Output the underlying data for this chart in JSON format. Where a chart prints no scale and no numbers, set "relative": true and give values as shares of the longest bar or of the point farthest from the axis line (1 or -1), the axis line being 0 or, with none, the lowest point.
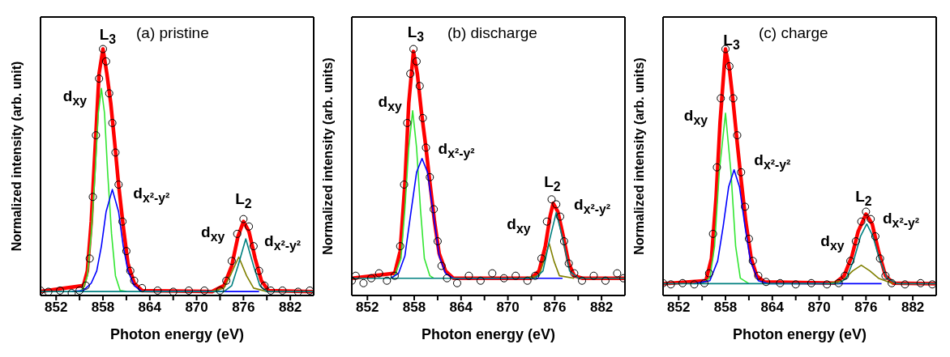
{
  "chart_data": [
    {
      "type": "line",
      "title": "(a) pristine",
      "xlabel": "Photon energy (eV)",
      "ylabel": "Normalized intensity (arb. unit)",
      "relative": true,
      "xlim": [
        850,
        885
      ],
      "xticks": [
        852,
        {
          "value": 855,
          "label": null
        },
        858,
        {
          "value": 861,
          "label": null
        },
        864,
        {
          "value": 867,
          "label": null
        },
        870,
        {
          "value": 873,
          "label": null
        },
        876,
        {
          "value": 879,
          "label": null
        },
        882
      ],
      "series": [
        {
          "type": "scatter",
          "marker": "circle",
          "color": "#000000",
          "x": [
            850,
            851,
            852.5,
            854,
            855,
            855.8,
            856.3,
            856.7,
            857.1,
            857.5,
            858,
            858.4,
            858.8,
            859.2,
            859.6,
            860,
            860.5,
            861,
            861.5,
            862,
            863,
            865,
            867,
            869,
            871,
            873,
            873.8,
            874.5,
            875.2,
            876,
            876.7,
            877.3,
            878,
            878.7,
            879.5,
            881,
            883,
            884.5
          ],
          "values": [
            0.02,
            0.015,
            0.02,
            0.01,
            0.02,
            0.04,
            0.15,
            0.4,
            0.65,
            0.88,
            1.0,
            0.95,
            0.82,
            0.7,
            0.58,
            0.45,
            0.3,
            0.18,
            0.1,
            0.06,
            0.03,
            0.02,
            0.015,
            0.02,
            0.02,
            0.02,
            0.06,
            0.14,
            0.25,
            0.31,
            0.28,
            0.2,
            0.1,
            0.04,
            0.02,
            0.02,
            0.015,
            0.02
          ]
        },
        {
          "color": "#ff0000",
          "x": [
            850,
            855.5,
            856,
            856.5,
            857,
            857.5,
            858,
            858.5,
            859,
            859.5,
            860,
            860.6,
            861.2,
            862,
            863,
            872,
            873.5,
            874.5,
            875.3,
            876,
            876.7,
            877.5,
            878.3,
            879.2,
            885
          ],
          "values": [
            0.016,
            0.04,
            0.1,
            0.3,
            0.6,
            0.9,
            1.0,
            0.9,
            0.78,
            0.62,
            0.45,
            0.28,
            0.13,
            0.05,
            0.02,
            0.016,
            0.04,
            0.12,
            0.24,
            0.3,
            0.26,
            0.15,
            0.06,
            0.02,
            0.016
          ]
        },
        {
          "color": "#33e633",
          "x": [
            855,
            855.5,
            856,
            856.5,
            857,
            857.4,
            857.8,
            858.2,
            858.6,
            859.1,
            859.6,
            860.2,
            861
          ],
          "values": [
            0.016,
            0.03,
            0.08,
            0.25,
            0.5,
            0.74,
            0.84,
            0.74,
            0.5,
            0.25,
            0.08,
            0.02,
            0.016
          ]
        },
        {
          "color": "#0000ff",
          "x": [
            854,
            855.5,
            856.5,
            857.2,
            857.8,
            858.4,
            859.2,
            860,
            860.6,
            861.2,
            862,
            863,
            878
          ],
          "values": [
            0.016,
            0.02,
            0.05,
            0.1,
            0.2,
            0.34,
            0.43,
            0.34,
            0.2,
            0.1,
            0.04,
            0.016,
            0.016
          ]
        },
        {
          "color": "#808000",
          "x": [
            872,
            873.5,
            874.3,
            875.4,
            876.4,
            877.3,
            879
          ],
          "values": [
            0.016,
            0.03,
            0.08,
            0.156,
            0.08,
            0.03,
            0.016
          ]
        },
        {
          "color": "#008080",
          "x": [
            850,
            873.5,
            874.5,
            875.3,
            876.3,
            877.3,
            878.1,
            879,
            885
          ],
          "values": [
            0.016,
            0.016,
            0.04,
            0.12,
            0.23,
            0.12,
            0.04,
            0.016,
            0.016
          ]
        }
      ],
      "annotations": [
        "L$_{3}$",
        "d$_{xy}$",
        "d$_{x²-y²}$",
        "L$_{2}$",
        "d$_{xy}$",
        "d$_{x²-y²}$"
      ]
    },
    {
      "type": "line",
      "title": "(b) discharge",
      "xlabel": "Photon energy (eV)",
      "ylabel": "Normalized intensity (arb. units)",
      "relative": true,
      "xlim": [
        850,
        885
      ],
      "xticks": [
        852,
        {
          "value": 855,
          "label": null
        },
        858,
        {
          "value": 861,
          "label": null
        },
        864,
        {
          "value": 867,
          "label": null
        },
        870,
        {
          "value": 873,
          "label": null
        },
        876,
        {
          "value": 879,
          "label": null
        },
        882
      ],
      "series": [
        {
          "type": "scatter",
          "marker": "circle",
          "color": "#000000",
          "x": [
            850,
            850.5,
            851.5,
            852.5,
            853.5,
            854.5,
            855.5,
            856.2,
            856.7,
            857.1,
            857.5,
            857.9,
            858.3,
            858.7,
            859.1,
            859.5,
            860,
            860.5,
            861,
            861.5,
            862.2,
            863.5,
            865,
            866.5,
            868,
            869.5,
            871,
            872.5,
            873.5,
            874.3,
            875,
            875.6,
            876.2,
            876.7,
            877.2,
            877.8,
            878.5,
            879.5,
            881,
            882.5,
            884,
            884.8
          ],
          "values": [
            0.06,
            0.08,
            0.05,
            0.07,
            0.09,
            0.06,
            0.08,
            0.2,
            0.45,
            0.7,
            0.9,
            1.0,
            0.95,
            0.85,
            0.72,
            0.6,
            0.48,
            0.35,
            0.22,
            0.12,
            0.07,
            0.05,
            0.08,
            0.06,
            0.09,
            0.07,
            0.08,
            0.06,
            0.08,
            0.15,
            0.3,
            0.39,
            0.37,
            0.32,
            0.22,
            0.13,
            0.09,
            0.06,
            0.08,
            0.06,
            0.09,
            0.07
          ]
        },
        {
          "color": "#ff0000",
          "x": [
            850,
            855.5,
            856.2,
            856.8,
            857.3,
            857.9,
            858.4,
            858.9,
            859.5,
            860,
            860.6,
            861.2,
            862,
            863,
            873,
            874,
            874.8,
            875.4,
            875.8,
            876.4,
            877.1,
            877.8,
            878.5,
            879.5,
            885
          ],
          "values": [
            0.07,
            0.09,
            0.18,
            0.45,
            0.78,
            0.99,
            0.9,
            0.75,
            0.6,
            0.46,
            0.3,
            0.17,
            0.1,
            0.07,
            0.07,
            0.1,
            0.2,
            0.32,
            0.374,
            0.34,
            0.24,
            0.13,
            0.08,
            0.07,
            0.07
          ]
        },
        {
          "color": "#33e633",
          "x": [
            855,
            855.5,
            856.3,
            856.8,
            857.3,
            857.8,
            858.3,
            858.8,
            859.3,
            860,
            860.5
          ],
          "values": [
            0.07,
            0.08,
            0.15,
            0.35,
            0.6,
            0.75,
            0.6,
            0.35,
            0.15,
            0.08,
            0.07
          ]
        },
        {
          "color": "#0000ff",
          "x": [
            855,
            856,
            856.8,
            857.5,
            858.3,
            859,
            859.7,
            860.5,
            861.2,
            862,
            863,
            877
          ],
          "values": [
            0.07,
            0.09,
            0.16,
            0.32,
            0.5,
            0.556,
            0.5,
            0.32,
            0.16,
            0.09,
            0.07,
            0.07
          ]
        },
        {
          "color": "#808000",
          "x": [
            872,
            874,
            874.6,
            875.3,
            875.9,
            876.6,
            878.5
          ],
          "values": [
            0.07,
            0.08,
            0.14,
            0.21,
            0.14,
            0.08,
            0.07
          ]
        },
        {
          "color": "#008080",
          "x": [
            850,
            873.5,
            874.5,
            875.3,
            876.2,
            877.1,
            877.9,
            879,
            885
          ],
          "values": [
            0.07,
            0.07,
            0.1,
            0.22,
            0.337,
            0.22,
            0.1,
            0.07,
            0.07
          ]
        }
      ],
      "annotations": [
        "L$_{3}$",
        "d$_{xy}$",
        "d$_{x²-y²}$",
        "L$_{2}$",
        "d$_{xy}$",
        "d$_{x²-y²}$"
      ]
    },
    {
      "type": "line",
      "title": "(c) charge",
      "xlabel": "Photon energy (eV)",
      "ylabel": "Normalized intensity (arb. units)",
      "relative": true,
      "xlim": [
        850,
        885
      ],
      "xticks": [
        852,
        {
          "value": 855,
          "label": null
        },
        858,
        {
          "value": 861,
          "label": null
        },
        864,
        {
          "value": 867,
          "label": null
        },
        870,
        {
          "value": 873,
          "label": null
        },
        876,
        {
          "value": 879,
          "label": null
        },
        882
      ],
      "series": [
        {
          "type": "scatter",
          "marker": "circle",
          "color": "#000000",
          "x": [
            850,
            851,
            852.5,
            854,
            855.3,
            855.9,
            856.4,
            856.9,
            857.4,
            858,
            858.5,
            859,
            859.5,
            860,
            860.5,
            861,
            861.5,
            862.2,
            863.2,
            865,
            867,
            869,
            871,
            872.5,
            873.3,
            874,
            874.7,
            875.4,
            876,
            876.6,
            877.2,
            877.8,
            878.5,
            879.3,
            881,
            883,
            884.5
          ],
          "values": [
            0.05,
            0.045,
            0.05,
            0.045,
            0.05,
            0.09,
            0.25,
            0.52,
            0.8,
            1.0,
            0.93,
            0.8,
            0.65,
            0.5,
            0.36,
            0.23,
            0.14,
            0.08,
            0.055,
            0.05,
            0.045,
            0.05,
            0.045,
            0.05,
            0.08,
            0.14,
            0.22,
            0.3,
            0.34,
            0.31,
            0.24,
            0.15,
            0.08,
            0.05,
            0.045,
            0.05,
            0.045
          ]
        },
        {
          "color": "#ff0000",
          "x": [
            850,
            855.5,
            856.2,
            856.8,
            857.3,
            858,
            858.5,
            859,
            859.5,
            860,
            860.6,
            861.3,
            862,
            863,
            872,
            873.2,
            874.2,
            875,
            876,
            876.8,
            877.6,
            878.5,
            879.5,
            885
          ],
          "values": [
            0.048,
            0.06,
            0.15,
            0.4,
            0.7,
            1.0,
            0.92,
            0.78,
            0.62,
            0.47,
            0.3,
            0.15,
            0.08,
            0.055,
            0.05,
            0.08,
            0.16,
            0.26,
            0.33,
            0.29,
            0.18,
            0.08,
            0.05,
            0.048
          ]
        },
        {
          "color": "#33e633",
          "x": [
            855,
            856,
            856.6,
            857.2,
            858,
            858.7,
            859.3,
            859.9,
            861
          ],
          "values": [
            0.048,
            0.07,
            0.2,
            0.5,
            0.74,
            0.5,
            0.2,
            0.07,
            0.048
          ]
        },
        {
          "color": "#0000ff",
          "x": [
            854,
            856,
            857,
            857.7,
            858.4,
            859.1,
            859.8,
            860.5,
            861.2,
            862.2,
            863.5,
            878
          ],
          "values": [
            0.048,
            0.06,
            0.14,
            0.28,
            0.44,
            0.51,
            0.44,
            0.28,
            0.14,
            0.06,
            0.048,
            0.048
          ]
        },
        {
          "color": "#808000",
          "x": [
            871,
            873,
            874.3,
            875.4,
            876.5,
            877.6,
            879.5
          ],
          "values": [
            0.048,
            0.06,
            0.1,
            0.123,
            0.1,
            0.07,
            0.048
          ]
        },
        {
          "color": "#008080",
          "x": [
            850,
            872.5,
            873.5,
            874.5,
            875.3,
            876.1,
            876.9,
            877.7,
            878.7,
            880,
            885
          ],
          "values": [
            0.048,
            0.048,
            0.07,
            0.15,
            0.24,
            0.29,
            0.24,
            0.15,
            0.07,
            0.048,
            0.048
          ]
        }
      ],
      "annotations": [
        "L$_{3}$",
        "d$_{xy}$",
        "d$_{x²-y²}$",
        "L$_{2}$",
        "d$_{xy}$",
        "d$_{x²-y²}$"
      ]
    }
  ]
}
